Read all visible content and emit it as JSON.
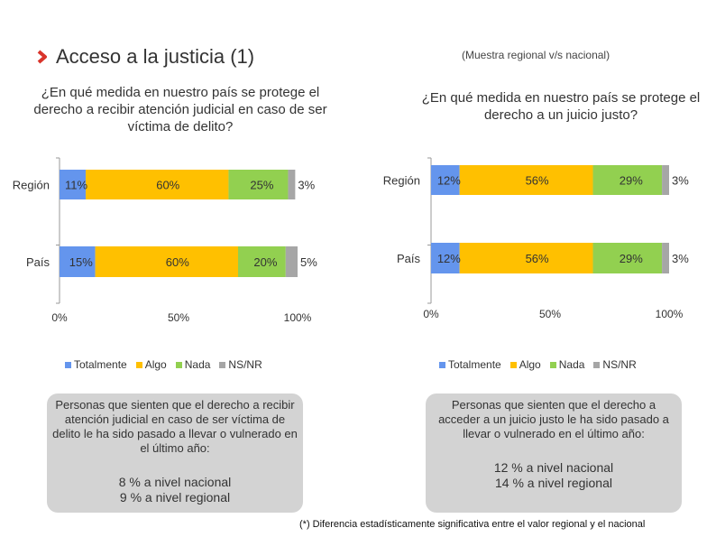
{
  "header": {
    "title": "Acceso a la justicia (1)",
    "subtitle": "(Muestra regional v/s nacional)"
  },
  "colors": {
    "totalmente": "#6495ED",
    "algo": "#FFC000",
    "nada": "#92D050",
    "nsnr": "#A6A6A6",
    "box": "#D3D3D3"
  },
  "legend": [
    "Totalmente",
    "Algo",
    "Nada",
    "NS/NR"
  ],
  "chart_data": [
    {
      "type": "bar",
      "orientation": "horizontal",
      "stacked": true,
      "title": "¿En qué medida en nuestro país se protege el derecho a recibir atención judicial en caso de ser víctima de delito?",
      "categories": [
        "Región",
        "País"
      ],
      "series": [
        {
          "name": "Totalmente",
          "values": [
            11,
            15
          ]
        },
        {
          "name": "Algo",
          "values": [
            60,
            60
          ]
        },
        {
          "name": "Nada",
          "values": [
            25,
            20
          ]
        },
        {
          "name": "NS/NR",
          "values": [
            3,
            5
          ]
        }
      ],
      "xticks": [
        "0%",
        "50%",
        "100%"
      ],
      "xlim": [
        0,
        100
      ]
    },
    {
      "type": "bar",
      "orientation": "horizontal",
      "stacked": true,
      "title": "¿En qué medida en nuestro país se protege el derecho a un juicio justo?",
      "categories": [
        "Región",
        "País"
      ],
      "series": [
        {
          "name": "Totalmente",
          "values": [
            12,
            12
          ]
        },
        {
          "name": "Algo",
          "values": [
            56,
            56
          ]
        },
        {
          "name": "Nada",
          "values": [
            29,
            29
          ]
        },
        {
          "name": "NS/NR",
          "values": [
            3,
            3
          ]
        }
      ],
      "xticks": [
        "0%",
        "50%",
        "100%"
      ],
      "xlim": [
        0,
        100
      ]
    }
  ],
  "boxes": {
    "left": {
      "text": "Personas que sienten que el derecho a recibir atención judicial en caso de ser víctima de delito le ha sido pasado a llevar o vulnerado en el último año:",
      "line1": "8 % a nivel nacional",
      "line2": "9 % a nivel regional"
    },
    "right": {
      "text": "Personas que sienten que el derecho a acceder a un juicio justo le ha sido pasado a llevar o vulnerado en el último año:",
      "line1": "12 % a nivel nacional",
      "line2": "14 % a nivel regional"
    }
  },
  "footnote": "(*) Diferencia estadísticamente significativa entre el valor regional y el nacional"
}
